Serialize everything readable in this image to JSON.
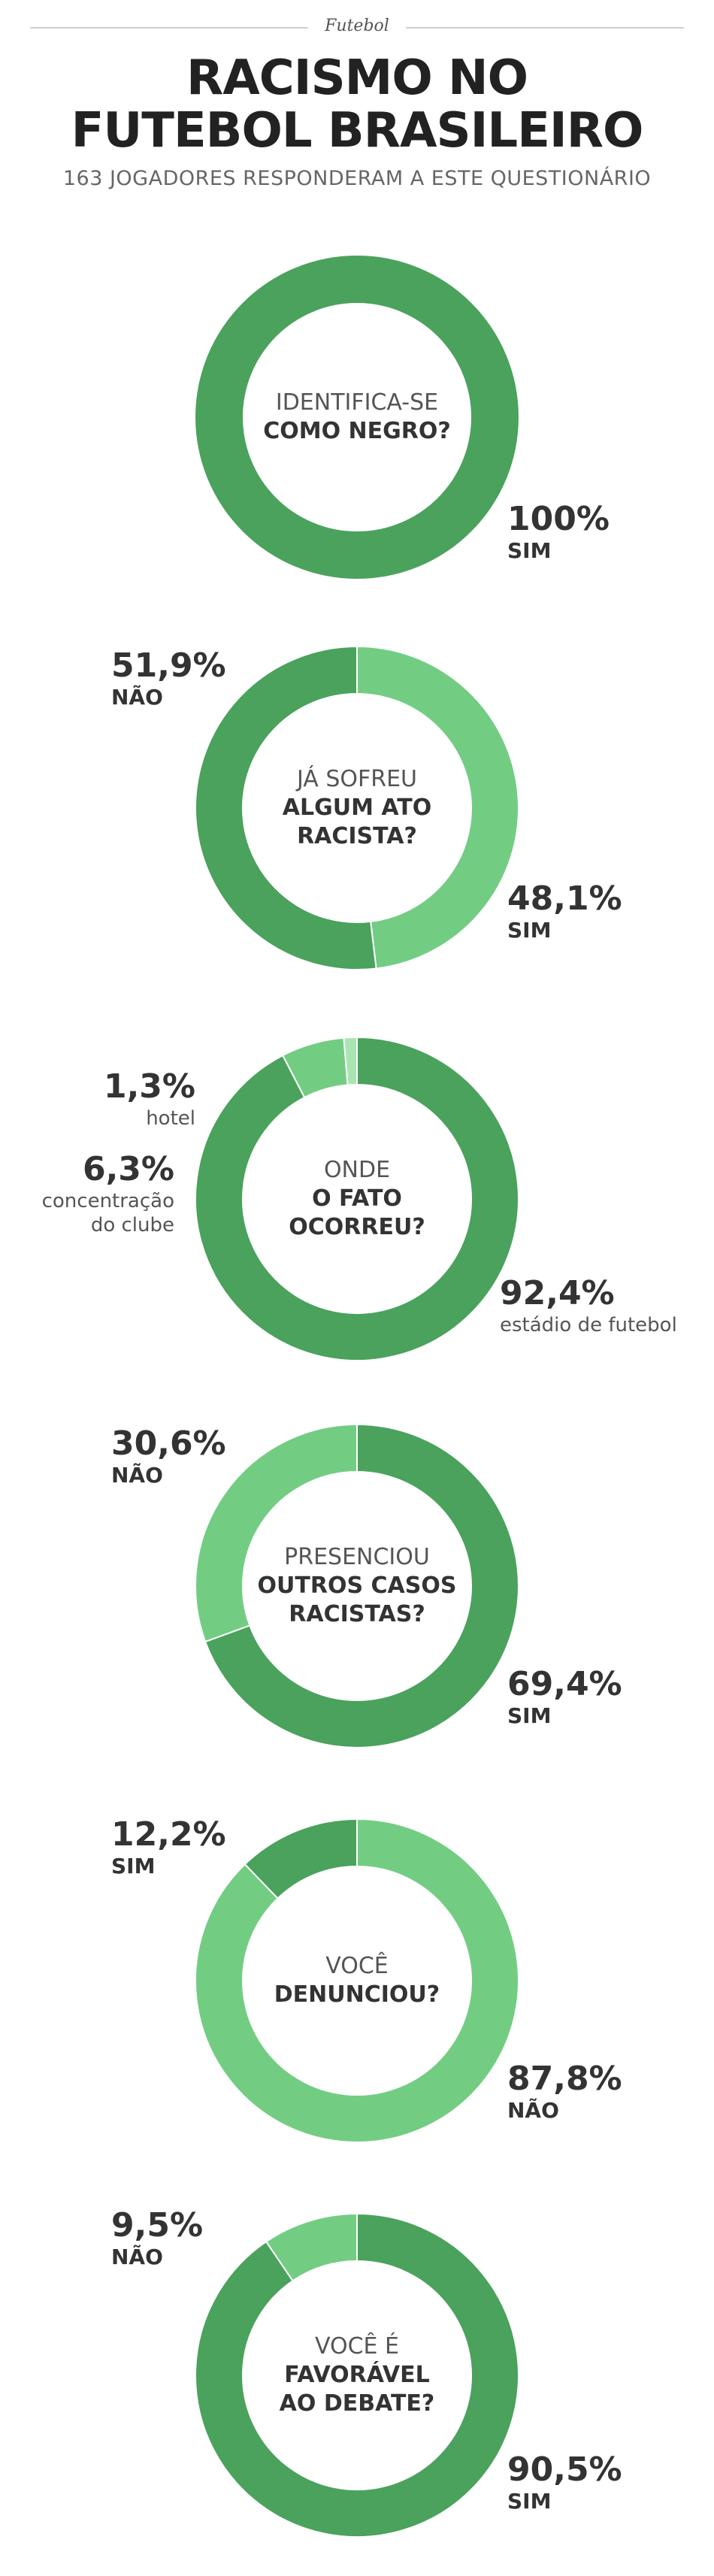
{
  "header": {
    "section": "Futebol",
    "title_line1": "RACISMO NO",
    "title_line2": "FUTEBOL BRASILEIRO",
    "subtitle": "163 JOGADORES RESPONDERAM A ESTE QUESTIONÁRIO"
  },
  "colors": {
    "dark_green": "#4aa25c",
    "light_green": "#72cd83",
    "pale_green": "#a9e5b3",
    "text": "#333333"
  },
  "chart_data": [
    {
      "type": "pie",
      "question": [
        "IDENTIFICA-SE",
        "COMO NEGRO?"
      ],
      "slices": [
        {
          "pct_label": "100%",
          "value": 100,
          "caption": "SIM",
          "color": "#4aa25c"
        }
      ]
    },
    {
      "type": "pie",
      "question": [
        "JÁ SOFREU",
        "ALGUM ATO",
        "RACISTA?"
      ],
      "slices": [
        {
          "pct_label": "48,1%",
          "value": 48.1,
          "caption": "SIM",
          "color": "#72cd83"
        },
        {
          "pct_label": "51,9%",
          "value": 51.9,
          "caption": "NÃO",
          "color": "#4aa25c"
        }
      ]
    },
    {
      "type": "pie",
      "question": [
        "ONDE",
        "O FATO",
        "OCORREU?"
      ],
      "slices": [
        {
          "pct_label": "92,4%",
          "value": 92.4,
          "caption": "estádio de futebol",
          "color": "#4aa25c"
        },
        {
          "pct_label": "6,3%",
          "value": 6.3,
          "caption": "concentração do clube",
          "color": "#72cd83"
        },
        {
          "pct_label": "1,3%",
          "value": 1.3,
          "caption": "hotel",
          "color": "#a9e5b3"
        }
      ]
    },
    {
      "type": "pie",
      "question": [
        "PRESENCIOU",
        "OUTROS CASOS",
        "RACISTAS?"
      ],
      "slices": [
        {
          "pct_label": "69,4%",
          "value": 69.4,
          "caption": "SIM",
          "color": "#4aa25c"
        },
        {
          "pct_label": "30,6%",
          "value": 30.6,
          "caption": "NÃO",
          "color": "#72cd83"
        }
      ]
    },
    {
      "type": "pie",
      "question": [
        "VOCÊ",
        "DENUNCIOU?"
      ],
      "slices": [
        {
          "pct_label": "87,8%",
          "value": 87.8,
          "caption": "NÃO",
          "color": "#72cd83"
        },
        {
          "pct_label": "12,2%",
          "value": 12.2,
          "caption": "SIM",
          "color": "#4aa25c"
        }
      ]
    },
    {
      "type": "pie",
      "question": [
        "VOCÊ É",
        "FAVORÁVEL",
        "AO DEBATE?"
      ],
      "slices": [
        {
          "pct_label": "90,5%",
          "value": 90.5,
          "caption": "SIM",
          "color": "#4aa25c"
        },
        {
          "pct_label": "9,5%",
          "value": 9.5,
          "caption": "NÃO",
          "color": "#72cd83"
        }
      ]
    }
  ]
}
